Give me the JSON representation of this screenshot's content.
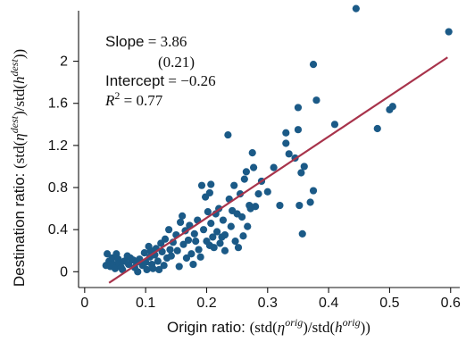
{
  "chart_data": {
    "type": "scatter",
    "title": "",
    "xlabel": {
      "lead": "Origin ratio: ",
      "math": "(std(η^orig)/std(h^orig))"
    },
    "ylabel": {
      "lead": "Destination ratio: ",
      "math": "(std(η^dest)/std(h^dest))"
    },
    "xlim": [
      -0.01,
      0.615
    ],
    "ylim": [
      -0.15,
      2.48
    ],
    "x_ticks": [
      0,
      0.1,
      0.2,
      0.3,
      0.4,
      0.5,
      0.6
    ],
    "x_tick_labels": [
      "0",
      "0.1",
      "0.2",
      "0.3",
      "0.4",
      "0.5",
      "0.6"
    ],
    "y_ticks": [
      0,
      0.4,
      0.8,
      1.2,
      1.6,
      2.0
    ],
    "y_tick_labels": [
      "0",
      "0.4",
      "0.8",
      "1.2",
      "1.6",
      "2"
    ],
    "grid": false,
    "colors": {
      "points": "#1b5a87",
      "fit_line": "#a8334b"
    },
    "annotation": {
      "slope_label": "Slope",
      "slope_value": "3.86",
      "slope_se": "(0.21)",
      "intercept_label": "Intercept",
      "intercept_value": "−0.26",
      "r2_label": "R",
      "r2_exp": "2",
      "r2_value": "0.77"
    },
    "fit_line": {
      "slope": 3.86,
      "intercept": -0.26,
      "x_range": [
        0.04,
        0.595
      ]
    },
    "points": [
      [
        0.035,
        0.06
      ],
      [
        0.037,
        0.17
      ],
      [
        0.04,
        0.1
      ],
      [
        0.042,
        0.05
      ],
      [
        0.045,
        0.13
      ],
      [
        0.048,
        0.07
      ],
      [
        0.05,
        0.03
      ],
      [
        0.052,
        0.17
      ],
      [
        0.055,
        0.12
      ],
      [
        0.057,
        0.08
      ],
      [
        0.06,
        0.04
      ],
      [
        0.062,
        0.02
      ],
      [
        0.065,
        0.1
      ],
      [
        0.07,
        0.15
      ],
      [
        0.072,
        0.07
      ],
      [
        0.075,
        0.13
      ],
      [
        0.08,
        0.11
      ],
      [
        0.082,
        0.04
      ],
      [
        0.085,
        0.09
      ],
      [
        0.087,
        0.0
      ],
      [
        0.09,
        0.12
      ],
      [
        0.095,
        0.06
      ],
      [
        0.098,
        0.18
      ],
      [
        0.1,
        0.09
      ],
      [
        0.102,
        0.02
      ],
      [
        0.105,
        0.24
      ],
      [
        0.107,
        0.14
      ],
      [
        0.108,
        0.2
      ],
      [
        0.11,
        0.07
      ],
      [
        0.112,
        0.03
      ],
      [
        0.115,
        0.16
      ],
      [
        0.117,
        0.22
      ],
      [
        0.12,
        0.1
      ],
      [
        0.122,
        0.02
      ],
      [
        0.125,
        0.27
      ],
      [
        0.127,
        0.19
      ],
      [
        0.13,
        0.06
      ],
      [
        0.132,
        0.31
      ],
      [
        0.135,
        0.13
      ],
      [
        0.138,
        0.4
      ],
      [
        0.14,
        0.21
      ],
      [
        0.142,
        0.15
      ],
      [
        0.145,
        0.28
      ],
      [
        0.15,
        0.35
      ],
      [
        0.152,
        0.2
      ],
      [
        0.155,
        0.05
      ],
      [
        0.157,
        0.47
      ],
      [
        0.16,
        0.53
      ],
      [
        0.162,
        0.26
      ],
      [
        0.165,
        0.39
      ],
      [
        0.167,
        0.13
      ],
      [
        0.17,
        0.3
      ],
      [
        0.172,
        0.44
      ],
      [
        0.175,
        0.17
      ],
      [
        0.178,
        0.07
      ],
      [
        0.18,
        0.36
      ],
      [
        0.182,
        0.29
      ],
      [
        0.185,
        0.49
      ],
      [
        0.187,
        0.21
      ],
      [
        0.19,
        0.14
      ],
      [
        0.192,
        0.82
      ],
      [
        0.195,
        0.4
      ],
      [
        0.198,
        0.71
      ],
      [
        0.2,
        0.29
      ],
      [
        0.202,
        0.57
      ],
      [
        0.205,
        0.25
      ],
      [
        0.205,
        0.75
      ],
      [
        0.207,
        0.46
      ],
      [
        0.207,
        0.83
      ],
      [
        0.21,
        0.33
      ],
      [
        0.212,
        0.23
      ],
      [
        0.215,
        0.55
      ],
      [
        0.217,
        0.38
      ],
      [
        0.22,
        0.6
      ],
      [
        0.222,
        0.27
      ],
      [
        0.225,
        0.33
      ],
      [
        0.227,
        0.49
      ],
      [
        0.23,
        0.2
      ],
      [
        0.23,
        0.35
      ],
      [
        0.235,
        1.3
      ],
      [
        0.237,
        0.69
      ],
      [
        0.24,
        0.43
      ],
      [
        0.242,
        0.58
      ],
      [
        0.245,
        0.82
      ],
      [
        0.247,
        0.29
      ],
      [
        0.25,
        0.55
      ],
      [
        0.252,
        0.23
      ],
      [
        0.255,
        0.74
      ],
      [
        0.258,
        0.52
      ],
      [
        0.26,
        0.34
      ],
      [
        0.262,
        0.88
      ],
      [
        0.265,
        0.95
      ],
      [
        0.267,
        0.43
      ],
      [
        0.27,
        0.63
      ],
      [
        0.272,
        0.6
      ],
      [
        0.275,
        1.13
      ],
      [
        0.277,
        0.99
      ],
      [
        0.28,
        0.62
      ],
      [
        0.285,
        0.74
      ],
      [
        0.29,
        0.86
      ],
      [
        0.3,
        0.76
      ],
      [
        0.31,
        0.99
      ],
      [
        0.32,
        0.63
      ],
      [
        0.33,
        1.32
      ],
      [
        0.33,
        1.22
      ],
      [
        0.335,
        1.12
      ],
      [
        0.345,
        1.08
      ],
      [
        0.35,
        1.56
      ],
      [
        0.35,
        1.35
      ],
      [
        0.352,
        0.63
      ],
      [
        0.355,
        0.94
      ],
      [
        0.357,
        0.36
      ],
      [
        0.36,
        1.0
      ],
      [
        0.37,
        0.66
      ],
      [
        0.375,
        0.77
      ],
      [
        0.375,
        1.97
      ],
      [
        0.38,
        1.63
      ],
      [
        0.41,
        1.4
      ],
      [
        0.445,
        2.5
      ],
      [
        0.48,
        1.36
      ],
      [
        0.5,
        1.54
      ],
      [
        0.505,
        1.57
      ],
      [
        0.597,
        2.28
      ]
    ]
  }
}
